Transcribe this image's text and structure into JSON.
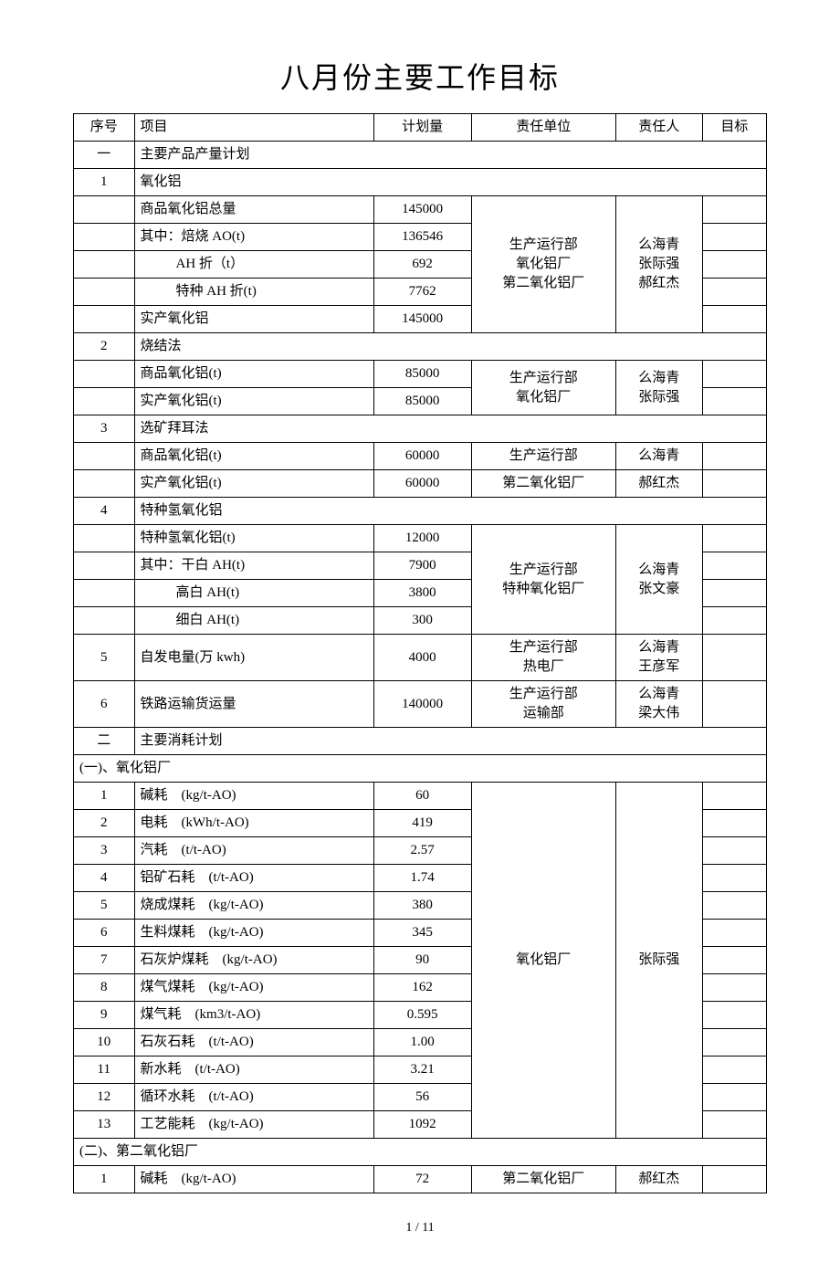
{
  "title": "八月份主要工作目标",
  "headers": {
    "seq": "序号",
    "item": "项目",
    "plan": "计划量",
    "dept": "责任单位",
    "resp": "责任人",
    "goal": "目标"
  },
  "sec1": {
    "seq": "一",
    "label": "主要产品产量计划"
  },
  "s1_1": {
    "seq": "1",
    "label": "氧化铝"
  },
  "s1_1_rows": [
    {
      "item": "商品氧化铝总量",
      "plan": "145000"
    },
    {
      "item": "其中：焙烧 AO(t)",
      "plan": "136546"
    },
    {
      "item": "AH 折（t）",
      "plan": "692"
    },
    {
      "item": "特种 AH 折(t)",
      "plan": "7762"
    },
    {
      "item": "实产氧化铝",
      "plan": "145000"
    }
  ],
  "s1_1_dept": "生产运行部\n氧化铝厂\n第二氧化铝厂",
  "s1_1_resp": "么海青\n张际强\n郝红杰",
  "s1_2": {
    "seq": "2",
    "label": "烧结法"
  },
  "s1_2_rows": [
    {
      "item": "商品氧化铝(t)",
      "plan": "85000"
    },
    {
      "item": "实产氧化铝(t)",
      "plan": "85000"
    }
  ],
  "s1_2_dept": "生产运行部\n氧化铝厂",
  "s1_2_resp": "么海青\n张际强",
  "s1_3": {
    "seq": "3",
    "label": "选矿拜耳法"
  },
  "s1_3_rows": [
    {
      "item": "商品氧化铝(t)",
      "plan": "60000",
      "dept": "生产运行部",
      "resp": "么海青"
    },
    {
      "item": "实产氧化铝(t)",
      "plan": "60000",
      "dept": "第二氧化铝厂",
      "resp": "郝红杰"
    }
  ],
  "s1_4": {
    "seq": "4",
    "label": "特种氢氧化铝"
  },
  "s1_4_rows": [
    {
      "item": "特种氢氧化铝(t)",
      "plan": "12000"
    },
    {
      "item": "其中：干白 AH(t)",
      "plan": "7900"
    },
    {
      "item": "高白 AH(t)",
      "plan": "3800"
    },
    {
      "item": "细白 AH(t)",
      "plan": "300"
    }
  ],
  "s1_4_dept": "生产运行部\n特种氧化铝厂",
  "s1_4_resp": "么海青\n张文豪",
  "s1_5": {
    "seq": "5",
    "item": "自发电量(万 kwh)",
    "plan": "4000",
    "dept": "生产运行部\n热电厂",
    "resp": "么海青\n王彦军"
  },
  "s1_6": {
    "seq": "6",
    "item": "铁路运输货运量",
    "plan": "140000",
    "dept": "生产运行部\n运输部",
    "resp": "么海青\n梁大伟"
  },
  "sec2": {
    "seq": "二",
    "label": "主要消耗计划"
  },
  "s2a": {
    "label": "(一)、氧化铝厂"
  },
  "s2a_rows": [
    {
      "seq": "1",
      "item": "碱耗",
      "unit": "(kg/t-AO)",
      "plan": "60"
    },
    {
      "seq": "2",
      "item": "电耗",
      "unit": "(kWh/t-AO)",
      "plan": "419"
    },
    {
      "seq": "3",
      "item": "汽耗",
      "unit": "(t/t-AO)",
      "plan": "2.57"
    },
    {
      "seq": "4",
      "item": "铝矿石耗",
      "unit": "(t/t-AO)",
      "plan": "1.74"
    },
    {
      "seq": "5",
      "item": "烧成煤耗",
      "unit": "(kg/t-AO)",
      "plan": "380"
    },
    {
      "seq": "6",
      "item": "生料煤耗",
      "unit": "(kg/t-AO)",
      "plan": "345"
    },
    {
      "seq": "7",
      "item": "石灰炉煤耗",
      "unit": "(kg/t-AO)",
      "plan": "90"
    },
    {
      "seq": "8",
      "item": "煤气煤耗",
      "unit": "(kg/t-AO)",
      "plan": "162"
    },
    {
      "seq": "9",
      "item": "煤气耗",
      "unit": "(km3/t-AO)",
      "plan": "0.595"
    },
    {
      "seq": "10",
      "item": "石灰石耗",
      "unit": "(t/t-AO)",
      "plan": "1.00"
    },
    {
      "seq": "11",
      "item": "新水耗",
      "unit": "(t/t-AO)",
      "plan": "3.21"
    },
    {
      "seq": "12",
      "item": "循环水耗",
      "unit": "(t/t-AO)",
      "plan": "56"
    },
    {
      "seq": "13",
      "item": "工艺能耗",
      "unit": "(kg/t-AO)",
      "plan": "1092"
    }
  ],
  "s2a_dept": "氧化铝厂",
  "s2a_resp": "张际强",
  "s2b": {
    "label": "(二)、第二氧化铝厂"
  },
  "s2b_rows": [
    {
      "seq": "1",
      "item": "碱耗",
      "unit": "(kg/t-AO)",
      "plan": "72",
      "dept": "第二氧化铝厂",
      "resp": "郝红杰"
    }
  ],
  "pagenum": "1 / 11"
}
